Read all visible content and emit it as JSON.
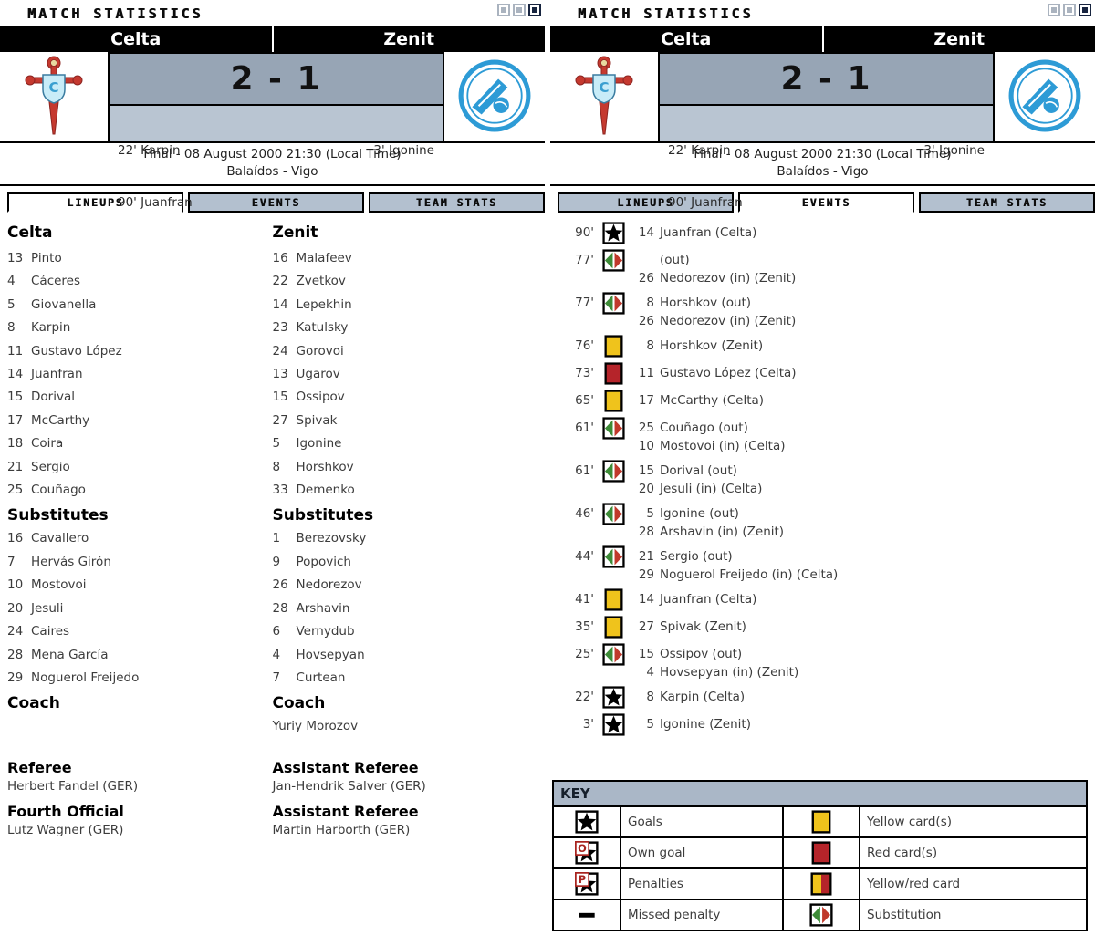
{
  "window": {
    "title": "MATCH STATISTICS"
  },
  "panels": [
    {
      "side": "left",
      "active_tab": "LINEUPS"
    },
    {
      "side": "right",
      "active_tab": "EVENTS"
    }
  ],
  "match": {
    "home_team": "Celta",
    "away_team": "Zenit",
    "score": "2 - 1",
    "home_scorers": [
      "22' Karpin",
      "90' Juanfran"
    ],
    "away_scorers": [
      "3' Igonine"
    ],
    "status_line": "Final - 08 August 2000 21:30 (Local Time)",
    "venue_line": "Balaídos - Vigo"
  },
  "tabs": [
    "LINEUPS",
    "EVENTS",
    "TEAM STATS"
  ],
  "labels": {
    "substitutes": "Substitutes",
    "coach": "Coach",
    "key": "KEY"
  },
  "lineups": {
    "home": {
      "name": "Celta",
      "players": [
        {
          "num": "13",
          "name": "Pinto"
        },
        {
          "num": "4",
          "name": "Cáceres"
        },
        {
          "num": "5",
          "name": "Giovanella"
        },
        {
          "num": "8",
          "name": "Karpin"
        },
        {
          "num": "11",
          "name": "Gustavo López"
        },
        {
          "num": "14",
          "name": "Juanfran"
        },
        {
          "num": "15",
          "name": "Dorival"
        },
        {
          "num": "17",
          "name": "McCarthy"
        },
        {
          "num": "18",
          "name": "Coira"
        },
        {
          "num": "21",
          "name": "Sergio"
        },
        {
          "num": "25",
          "name": "Couñago"
        }
      ],
      "subs": [
        {
          "num": "16",
          "name": "Cavallero"
        },
        {
          "num": "7",
          "name": "Hervás Girón"
        },
        {
          "num": "10",
          "name": "Mostovoi"
        },
        {
          "num": "20",
          "name": "Jesuli"
        },
        {
          "num": "24",
          "name": "Caires"
        },
        {
          "num": "28",
          "name": "Mena García"
        },
        {
          "num": "29",
          "name": "Noguerol Freijedo"
        }
      ],
      "coach": ""
    },
    "away": {
      "name": "Zenit",
      "players": [
        {
          "num": "16",
          "name": "Malafeev"
        },
        {
          "num": "22",
          "name": "Zvetkov"
        },
        {
          "num": "14",
          "name": "Lepekhin"
        },
        {
          "num": "23",
          "name": "Katulsky"
        },
        {
          "num": "24",
          "name": "Gorovoi"
        },
        {
          "num": "13",
          "name": "Ugarov"
        },
        {
          "num": "15",
          "name": "Ossipov"
        },
        {
          "num": "27",
          "name": "Spivak"
        },
        {
          "num": "5",
          "name": "Igonine"
        },
        {
          "num": "8",
          "name": "Horshkov"
        },
        {
          "num": "33",
          "name": "Demenko"
        }
      ],
      "subs": [
        {
          "num": "1",
          "name": "Berezovsky"
        },
        {
          "num": "9",
          "name": "Popovich"
        },
        {
          "num": "26",
          "name": "Nedorezov"
        },
        {
          "num": "28",
          "name": "Arshavin"
        },
        {
          "num": "6",
          "name": "Vernydub"
        },
        {
          "num": "4",
          "name": "Hovsepyan"
        },
        {
          "num": "7",
          "name": "Curtean"
        }
      ],
      "coach": "Yuriy Morozov"
    },
    "officials": [
      {
        "role": "Referee",
        "name": "Herbert Fandel (GER)"
      },
      {
        "role": "Assistant Referee",
        "name": "Jan-Hendrik Salver (GER)"
      },
      {
        "role": "Fourth Official",
        "name": "Lutz Wagner (GER)"
      },
      {
        "role": "Assistant Referee",
        "name": "Martin Harborth (GER)"
      }
    ]
  },
  "events": [
    {
      "minute": "90'",
      "icon": "goal",
      "lines": [
        {
          "num": "14",
          "text": "Juanfran (Celta)"
        }
      ]
    },
    {
      "minute": "77'",
      "icon": "substitution",
      "lines": [
        {
          "num": "",
          "text": "(out)"
        },
        {
          "num": "26",
          "text": "Nedorezov (in) (Zenit)"
        }
      ]
    },
    {
      "minute": "77'",
      "icon": "substitution",
      "lines": [
        {
          "num": "8",
          "text": "Horshkov (out)"
        },
        {
          "num": "26",
          "text": "Nedorezov (in) (Zenit)"
        }
      ]
    },
    {
      "minute": "76'",
      "icon": "yellow-card",
      "lines": [
        {
          "num": "8",
          "text": "Horshkov (Zenit)"
        }
      ]
    },
    {
      "minute": "73'",
      "icon": "red-card",
      "lines": [
        {
          "num": "11",
          "text": "Gustavo López (Celta)"
        }
      ]
    },
    {
      "minute": "65'",
      "icon": "yellow-card",
      "lines": [
        {
          "num": "17",
          "text": "McCarthy (Celta)"
        }
      ]
    },
    {
      "minute": "61'",
      "icon": "substitution",
      "lines": [
        {
          "num": "25",
          "text": "Couñago (out)"
        },
        {
          "num": "10",
          "text": "Mostovoi (in) (Celta)"
        }
      ]
    },
    {
      "minute": "61'",
      "icon": "substitution",
      "lines": [
        {
          "num": "15",
          "text": "Dorival (out)"
        },
        {
          "num": "20",
          "text": "Jesuli (in) (Celta)"
        }
      ]
    },
    {
      "minute": "46'",
      "icon": "substitution",
      "lines": [
        {
          "num": "5",
          "text": "Igonine (out)"
        },
        {
          "num": "28",
          "text": "Arshavin (in) (Zenit)"
        }
      ]
    },
    {
      "minute": "44'",
      "icon": "substitution",
      "lines": [
        {
          "num": "21",
          "text": "Sergio (out)"
        },
        {
          "num": "29",
          "text": "Noguerol Freijedo (in) (Celta)"
        }
      ]
    },
    {
      "minute": "41'",
      "icon": "yellow-card",
      "lines": [
        {
          "num": "14",
          "text": "Juanfran (Celta)"
        }
      ]
    },
    {
      "minute": "35'",
      "icon": "yellow-card",
      "lines": [
        {
          "num": "27",
          "text": "Spivak (Zenit)"
        }
      ]
    },
    {
      "minute": "25'",
      "icon": "substitution",
      "lines": [
        {
          "num": "15",
          "text": "Ossipov (out)"
        },
        {
          "num": "4",
          "text": "Hovsepyan (in) (Zenit)"
        }
      ]
    },
    {
      "minute": "22'",
      "icon": "goal",
      "lines": [
        {
          "num": "8",
          "text": "Karpin (Celta)"
        }
      ]
    },
    {
      "minute": "3'",
      "icon": "goal",
      "lines": [
        {
          "num": "5",
          "text": "Igonine (Zenit)"
        }
      ]
    }
  ],
  "key": {
    "title": "KEY",
    "items": [
      {
        "icon": "goal",
        "label": "Goals"
      },
      {
        "icon": "yellow-card",
        "label": "Yellow card(s)"
      },
      {
        "icon": "own-goal",
        "label": "Own goal"
      },
      {
        "icon": "red-card",
        "label": "Red card(s)"
      },
      {
        "icon": "penalty",
        "label": "Penalties"
      },
      {
        "icon": "yellow-red-card",
        "label": "Yellow/red card"
      },
      {
        "icon": "missed-penalty",
        "label": "Missed penalty"
      },
      {
        "icon": "substitution",
        "label": "Substitution"
      }
    ]
  },
  "colors": {
    "yellow_card": "#efc31c",
    "red_card": "#b5242a",
    "badge_red": "#a8241f",
    "sub_green": "#3d8b37",
    "sub_red": "#c0392b",
    "score_band": "#97a5b5",
    "scorers_band": "#b9c5d2",
    "tab_inactive": "#b3c0cf",
    "key_header": "#aab7c7",
    "titlebar_navy": "#17243f",
    "celta_red": "#c5392f",
    "celta_shield": "#c8ecf8",
    "zenit_blue": "#2d9bd6"
  }
}
